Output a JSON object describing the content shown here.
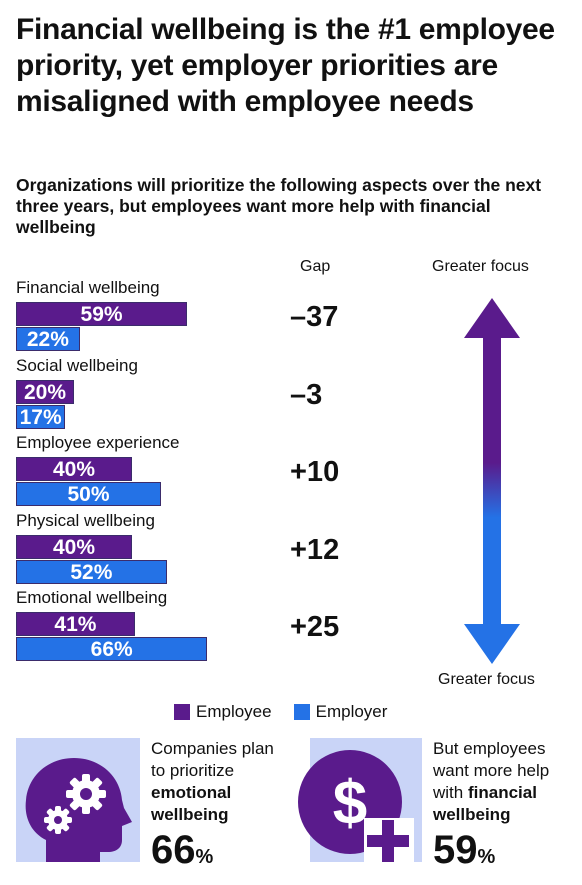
{
  "title": "Financial wellbeing is the #1 employee priority, yet employer priorities are misaligned with employee needs",
  "subtitle": "Organizations will prioritize the following aspects over the next three years, but employees want more help with financial wellbeing",
  "gap_header": "Gap",
  "arrow_top_label": "Greater focus",
  "arrow_bottom_label": "Greater focus",
  "colors": {
    "employee": "#5a1b8c",
    "employer": "#2472e6"
  },
  "chart_data": {
    "type": "bar",
    "orientation": "horizontal",
    "categories": [
      "Financial wellbeing",
      "Social wellbeing",
      "Employee experience",
      "Physical wellbeing",
      "Emotional wellbeing"
    ],
    "series": [
      {
        "name": "Employee",
        "values": [
          59,
          20,
          40,
          40,
          41
        ],
        "labels": [
          "59%",
          "20%",
          "40%",
          "40%",
          "41%"
        ]
      },
      {
        "name": "Employer",
        "values": [
          22,
          17,
          50,
          52,
          66
        ],
        "labels": [
          "22%",
          "17%",
          "50%",
          "52%",
          "66%"
        ]
      }
    ],
    "gap": [
      "–37",
      "–3",
      "+10",
      "+12",
      "+25"
    ],
    "xlim": [
      0,
      100
    ],
    "legend": "bottom"
  },
  "legend": {
    "employee": "Employee",
    "employer": "Employer"
  },
  "cards": [
    {
      "icon": "head-gears-icon",
      "line1": "Companies plan",
      "line2": "to prioritize",
      "bold1": "emotional",
      "bold2": "wellbeing",
      "value": "66",
      "pct": "%"
    },
    {
      "icon": "dollar-plus-icon",
      "line1": "But employees",
      "line2": "want more help",
      "line3": "with",
      "bold1": "financial",
      "bold2": "wellbeing",
      "value": "59",
      "pct": "%"
    }
  ]
}
